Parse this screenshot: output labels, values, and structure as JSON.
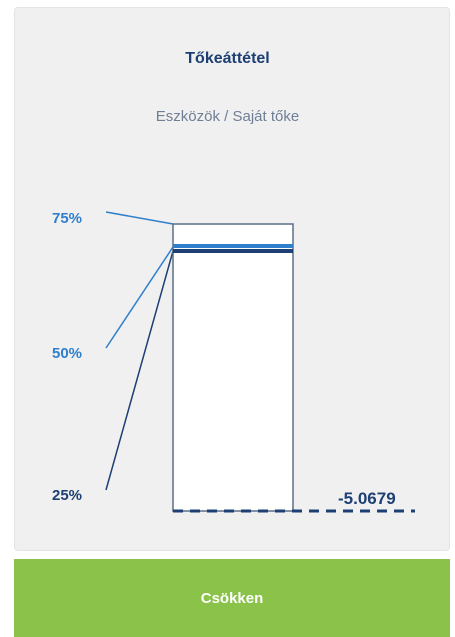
{
  "card": {
    "title": "Tőkeáttétel",
    "subtitle": "Eszközök / Saját tőke"
  },
  "chart_data": {
    "type": "bar",
    "value_label": "-5.0679",
    "tick_labels": [
      {
        "text": "75%",
        "color": "#2f7fcd"
      },
      {
        "text": "50%",
        "color": "#2f7fcd"
      },
      {
        "text": "25%",
        "color": "#1d3f73"
      }
    ],
    "levels": [
      {
        "name": "75%",
        "value": 0.75,
        "color": "#2f7fcd"
      },
      {
        "name": "50%",
        "value": 0.5,
        "color": "#2f7fcd"
      },
      {
        "name": "25%",
        "value": 0.25,
        "color": "#1d3f73"
      }
    ],
    "current_value": -5.0679,
    "colors": {
      "bar_fill": "#ffffff",
      "bar_border": "#5a6f87",
      "level_dark": "#1d3f73",
      "level_light": "#2f7fcd",
      "baseline": "#1d3f73"
    }
  },
  "action": {
    "label": "Csökken",
    "color": "#8bc24a"
  }
}
